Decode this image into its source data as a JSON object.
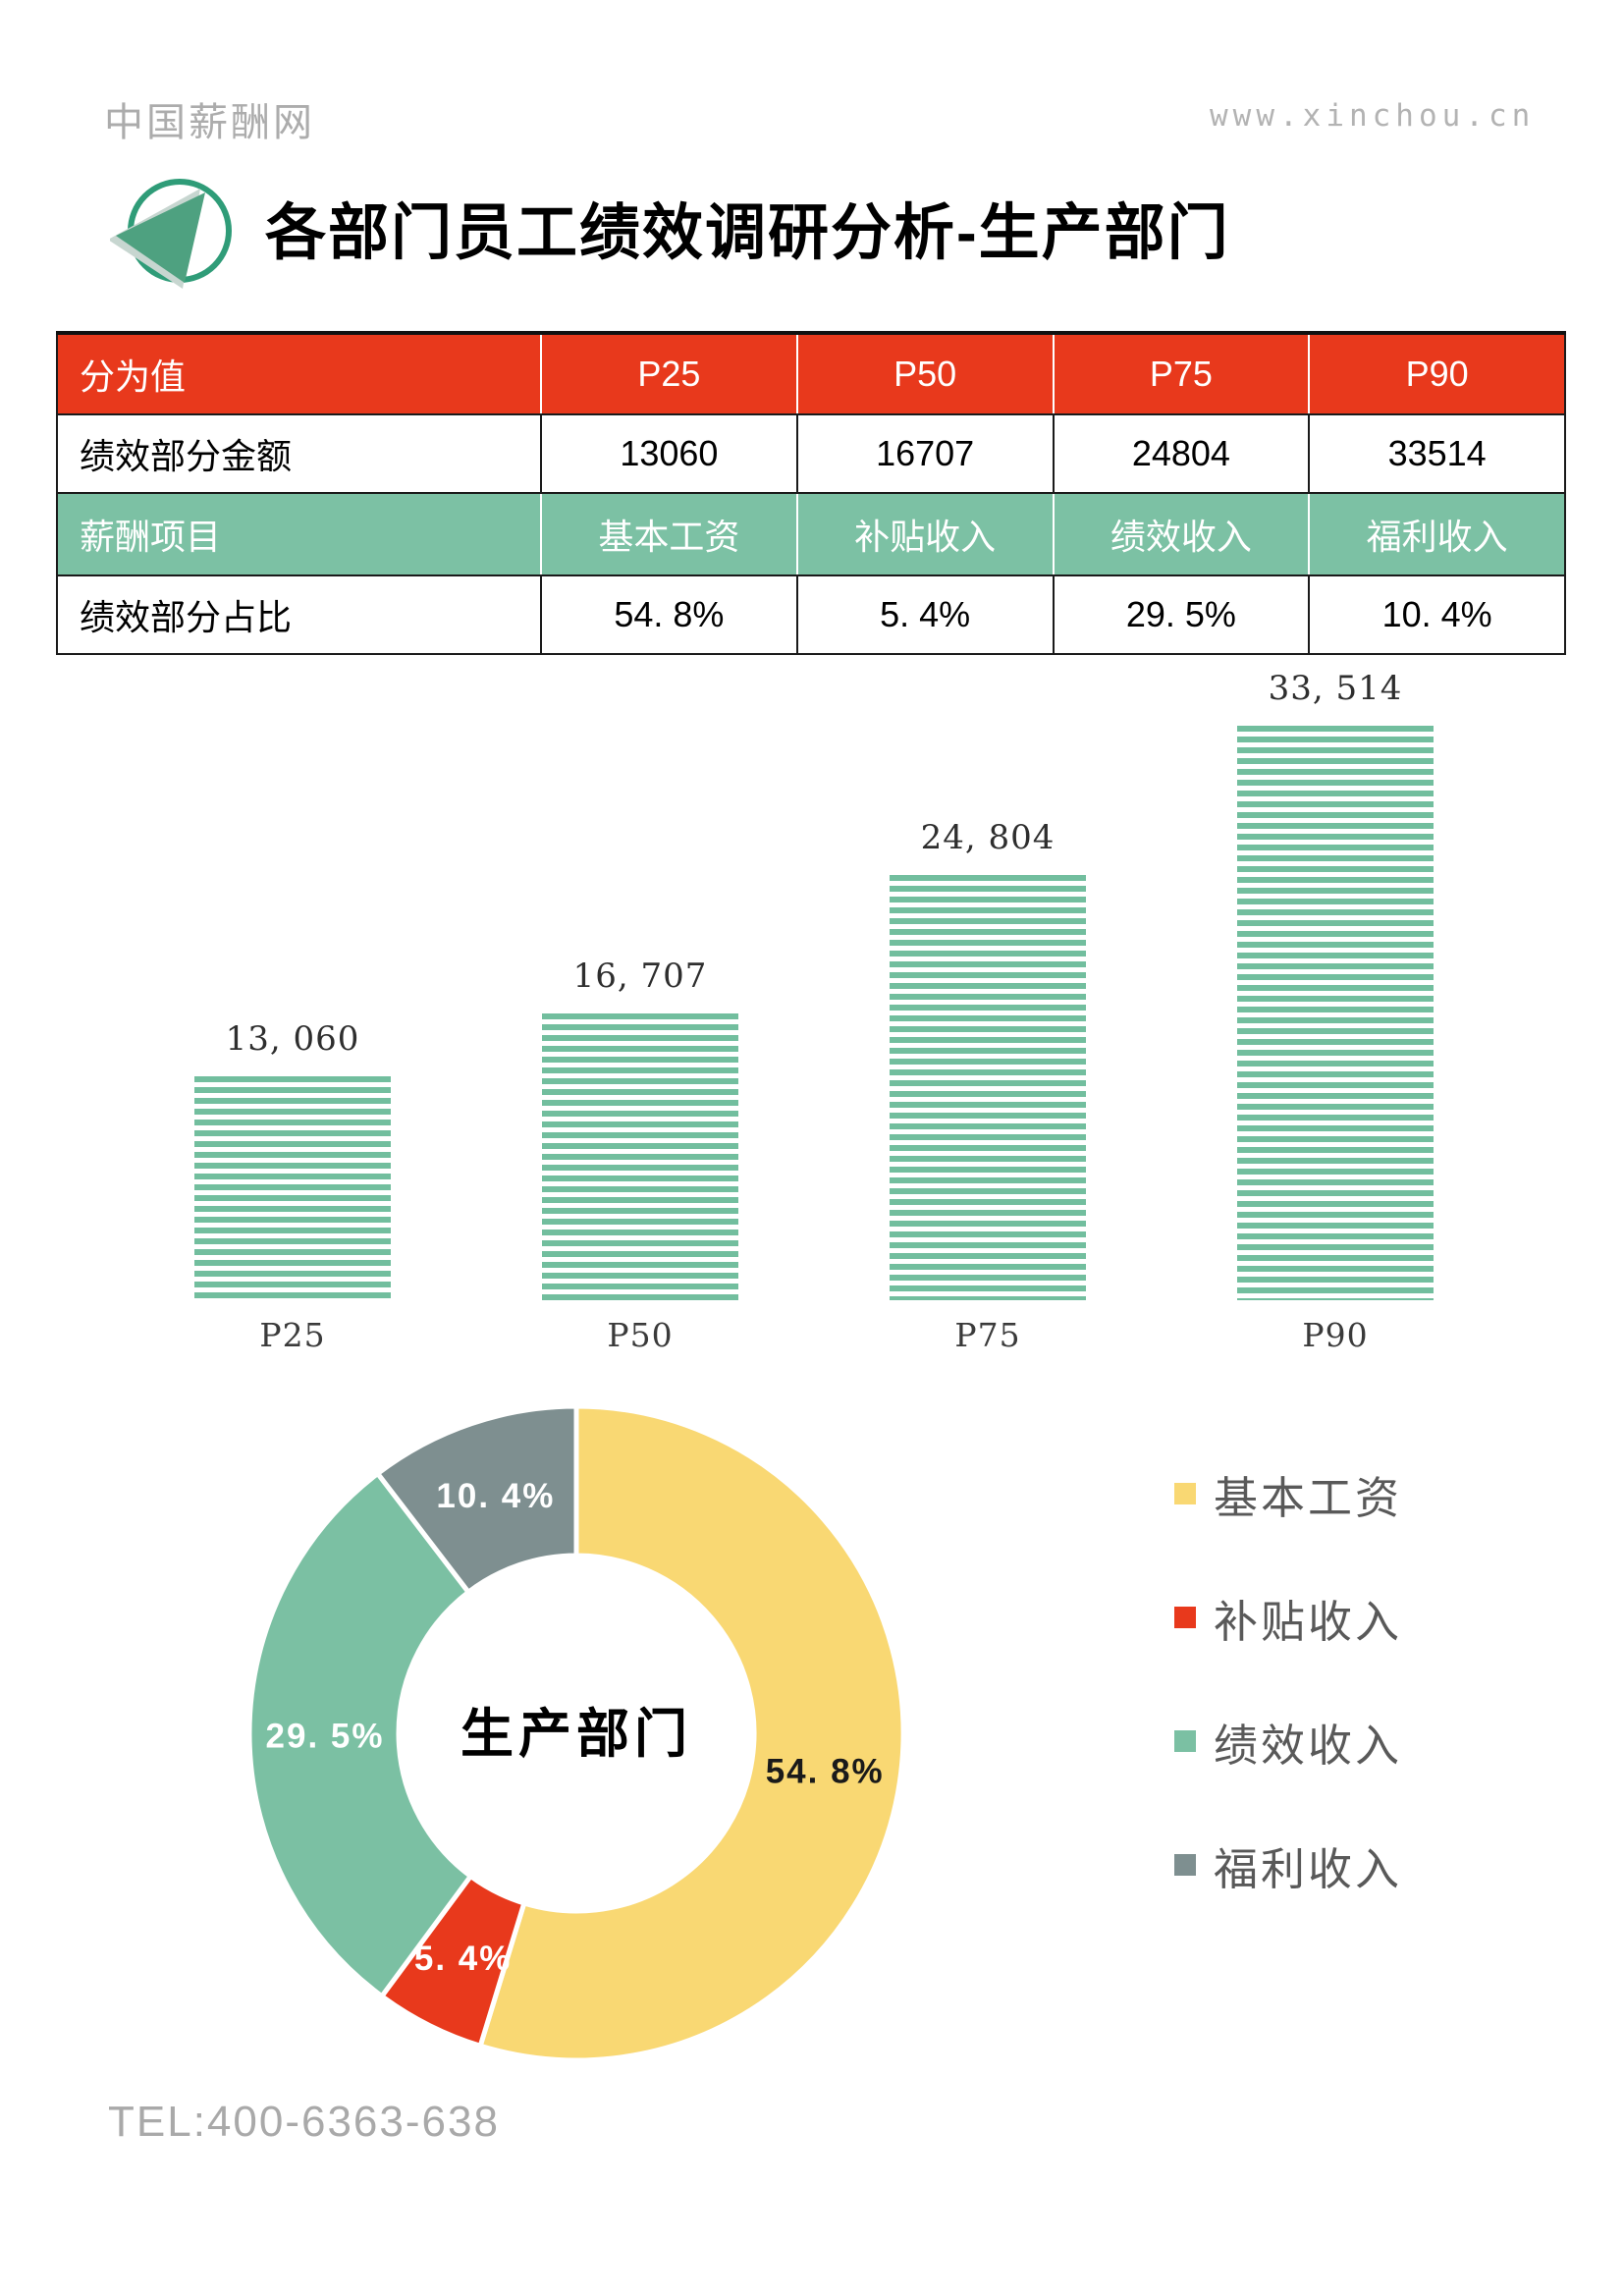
{
  "header": {
    "brand": "中国薪酬网",
    "url": "www.xinchou.cn"
  },
  "title": "各部门员工绩效调研分析-生产部门",
  "table": {
    "rows": [
      {
        "header": "分为值",
        "cells": [
          "P25",
          "P50",
          "P75",
          "P90"
        ],
        "bg": "#e8391c",
        "fg": "#ffffff"
      },
      {
        "header": "绩效部分金额",
        "cells": [
          "13060",
          "16707",
          "24804",
          "33514"
        ]
      },
      {
        "header": "薪酬项目",
        "cells": [
          "基本工资",
          "补贴收入",
          "绩效收入",
          "福利收入"
        ],
        "bg": "#7cc1a4",
        "fg": "#ffffff"
      },
      {
        "header": "绩效部分占比",
        "cells": [
          "54. 8%",
          "5. 4%",
          "29. 5%",
          "10. 4%"
        ]
      }
    ]
  },
  "chart_data": [
    {
      "type": "bar",
      "title": "绩效部分金额 by 分为值",
      "categories": [
        "P25",
        "P50",
        "P75",
        "P90"
      ],
      "values": [
        13060,
        16707,
        24804,
        33514
      ],
      "value_labels": [
        "13, 060",
        "16, 707",
        "24, 804",
        "33, 514"
      ],
      "ylim": [
        0,
        33514
      ],
      "bar_color": "#72be9e",
      "stripe_gap_color": "#ffffff",
      "grid": false,
      "legend": "none"
    },
    {
      "type": "pie",
      "style": "donut",
      "center_label": "生产部门",
      "legend_position": "right",
      "slices": [
        {
          "label": "基本工资",
          "pct": 54.8,
          "display": "54. 8%",
          "color": "#f9d873",
          "label_color": "#1a1a1a"
        },
        {
          "label": "补贴收入",
          "pct": 5.4,
          "display": "5. 4%",
          "color": "#e8391c",
          "label_color": "#ffffff"
        },
        {
          "label": "绩效收入",
          "pct": 29.5,
          "display": "29. 5%",
          "color": "#7bc0a3",
          "label_color": "#ffffff"
        },
        {
          "label": "福利收入",
          "pct": 10.4,
          "display": "10. 4%",
          "color": "#7e8f90",
          "label_color": "#ffffff"
        }
      ]
    }
  ],
  "footer": {
    "tel": "TEL:400-6363-638"
  }
}
